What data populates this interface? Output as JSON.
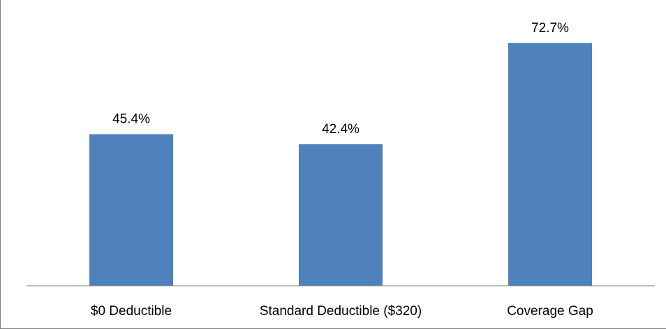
{
  "chart_data": {
    "type": "bar",
    "title": "",
    "xlabel": "",
    "ylabel": "",
    "categories": [
      "$0 Deductible",
      "Standard Deductible ($320)",
      "Coverage Gap"
    ],
    "values": [
      45.4,
      42.4,
      72.7
    ],
    "value_labels": [
      "45.4%",
      "42.4%",
      "72.7%"
    ],
    "ylim": [
      0,
      80
    ],
    "grid": false,
    "legend": "none",
    "bar_color": "#4f81bd",
    "axis_color": "#7f7f7f"
  }
}
